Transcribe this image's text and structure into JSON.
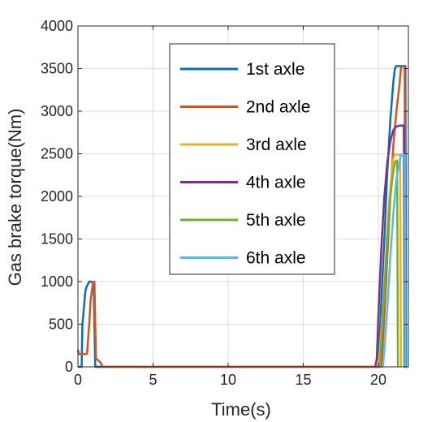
{
  "chart_data": {
    "type": "line",
    "title": "",
    "xlabel": "Time(s)",
    "ylabel": "Gas brake torque(Nm)",
    "xlim": [
      0,
      22
    ],
    "ylim": [
      0,
      4000
    ],
    "xticks": [
      0,
      5,
      10,
      15,
      20
    ],
    "yticks": [
      0,
      500,
      1000,
      1500,
      2000,
      2500,
      3000,
      3500,
      4000
    ],
    "grid": true,
    "legend_position": "top-center",
    "series": [
      {
        "name": "1st axle",
        "color": "#0072BD",
        "x": [
          0.0,
          0.25,
          0.3,
          0.35,
          0.45,
          0.5,
          0.6,
          0.75,
          0.9,
          1.0,
          1.05,
          1.15,
          1.2,
          20.0,
          20.2,
          20.4,
          20.6,
          20.8,
          21.0,
          21.1,
          21.2,
          21.3,
          21.5,
          21.7,
          21.8,
          21.85,
          21.9
        ],
        "y": [
          0,
          0,
          500,
          600,
          800,
          900,
          950,
          1000,
          1000,
          980,
          950,
          0,
          0,
          0,
          800,
          1500,
          2300,
          2900,
          3350,
          3500,
          3530,
          3530,
          3530,
          3530,
          3530,
          0,
          0
        ]
      },
      {
        "name": "2nd axle",
        "color": "#D95319",
        "x": [
          0.0,
          0.05,
          0.1,
          0.6,
          0.75,
          0.85,
          1.0,
          1.1,
          1.15,
          1.2,
          1.5,
          1.65,
          20.0,
          20.2,
          20.4,
          20.6,
          20.8,
          21.0,
          21.2,
          21.4,
          21.5,
          21.6,
          21.65,
          21.7,
          21.75,
          21.8,
          21.9
        ],
        "y": [
          200,
          150,
          150,
          150,
          500,
          800,
          980,
          1000,
          500,
          100,
          50,
          0,
          0,
          0,
          600,
          1300,
          2000,
          2600,
          3000,
          3300,
          3500,
          3530,
          3530,
          3530,
          3530,
          0,
          0
        ]
      },
      {
        "name": "3rd axle",
        "color": "#EDB120",
        "x": [
          20.0,
          20.1,
          20.3,
          20.5,
          20.7,
          20.9,
          21.0,
          21.1,
          21.2,
          21.3,
          21.4,
          21.45,
          21.5
        ],
        "y": [
          0,
          200,
          700,
          1300,
          1900,
          2300,
          2450,
          2490,
          2490,
          2490,
          2490,
          2490,
          0
        ]
      },
      {
        "name": "4th axle",
        "color": "#7E2F8E",
        "x": [
          19.8,
          19.9,
          20.0,
          20.2,
          20.4,
          20.6,
          20.8,
          21.0,
          21.2,
          21.4,
          21.6,
          21.7,
          21.75,
          21.8
        ],
        "y": [
          0,
          100,
          600,
          1400,
          2000,
          2400,
          2650,
          2780,
          2820,
          2830,
          2830,
          2830,
          0,
          0
        ]
      },
      {
        "name": "5th axle",
        "color": "#77AC30",
        "x": [
          20.1,
          20.2,
          20.4,
          20.6,
          20.8,
          21.0,
          21.1,
          21.2,
          21.25,
          21.3
        ],
        "y": [
          0,
          300,
          900,
          1500,
          2000,
          2300,
          2400,
          2420,
          2420,
          0
        ]
      },
      {
        "name": "6th axle",
        "color": "#4DBEEE",
        "x": [
          20.3,
          20.4,
          20.6,
          20.8,
          21.0,
          21.2,
          21.4,
          21.5,
          21.6,
          21.7,
          21.75,
          21.8
        ],
        "y": [
          0,
          200,
          700,
          1300,
          1800,
          2200,
          2400,
          2480,
          2490,
          2490,
          2490,
          0
        ]
      }
    ]
  }
}
